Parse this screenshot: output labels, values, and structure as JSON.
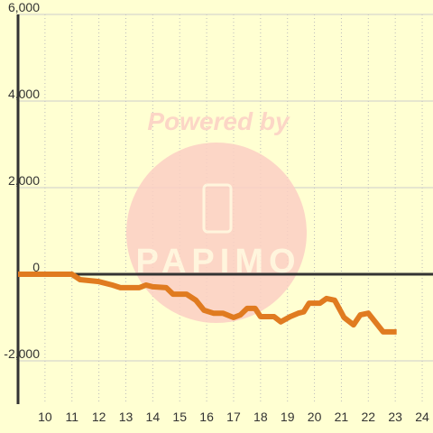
{
  "chart_data": {
    "type": "line",
    "watermark": [
      "Powered by",
      "PAPIMO"
    ],
    "x": [
      9,
      11,
      11.3,
      12,
      12.5,
      12.8,
      13.5,
      13.75,
      14,
      14.5,
      14.75,
      15.25,
      15.6,
      15.9,
      16.25,
      16.6,
      17,
      17.25,
      17.5,
      17.8,
      18,
      18.5,
      18.75,
      19.1,
      19.4,
      19.6,
      19.8,
      20.2,
      20.45,
      20.75,
      21.1,
      21.45,
      21.7,
      22,
      22.55,
      23.05
    ],
    "series": [
      {
        "color": "#e07b20",
        "values": [
          0,
          0,
          -125,
          -170,
          -250,
          -310,
          -310,
          -250,
          -290,
          -310,
          -460,
          -460,
          -600,
          -830,
          -900,
          -900,
          -1000,
          -940,
          -790,
          -790,
          -980,
          -980,
          -1100,
          -980,
          -900,
          -870,
          -670,
          -670,
          -560,
          -600,
          -1000,
          -1170,
          -940,
          -900,
          -1330,
          -1330
        ]
      }
    ],
    "xlim": [
      9,
      24.4
    ],
    "xticks": [
      10,
      11,
      12,
      13,
      14,
      15,
      16,
      17,
      18,
      19,
      20,
      21,
      22,
      23,
      24
    ],
    "ylim": [
      -3000,
      6000
    ],
    "yticks": [
      {
        "value": -2000,
        "label": "-2,000"
      },
      0,
      {
        "value": 2000,
        "label": "2,000"
      },
      {
        "value": 4000,
        "label": "4,000"
      },
      {
        "value": 6000,
        "label": "6,000"
      }
    ],
    "grid": true
  }
}
